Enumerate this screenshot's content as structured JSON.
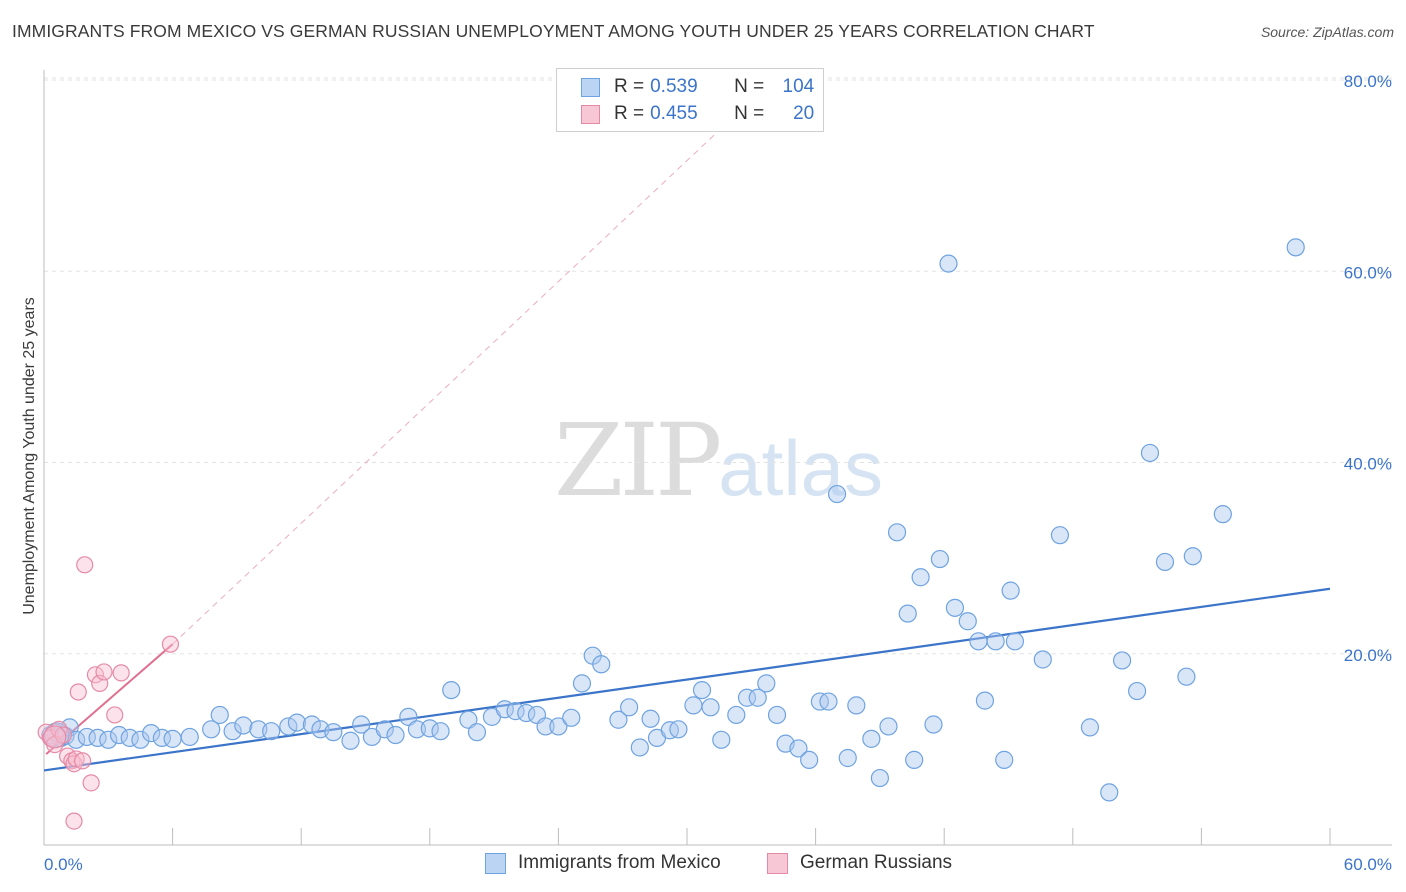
{
  "title": "IMMIGRANTS FROM MEXICO VS GERMAN RUSSIAN UNEMPLOYMENT AMONG YOUTH UNDER 25 YEARS CORRELATION CHART",
  "source": "Source: ZipAtlas.com",
  "watermark": {
    "part1": "ZIP",
    "part2": "atlas"
  },
  "legend": {
    "r_label": "R =",
    "n_label": "N =",
    "entries": [
      {
        "name": "Immigrants from Mexico",
        "r": "0.539",
        "n": "104",
        "color": "#6fa3e0",
        "fill": "#bcd4f4"
      },
      {
        "name": "German Russians",
        "r": "0.455",
        "n": "20",
        "color": "#e58aa6",
        "fill": "#f8c7d6"
      }
    ]
  },
  "chart_data": {
    "type": "scatter",
    "title": "IMMIGRANTS FROM MEXICO VS GERMAN RUSSIAN UNEMPLOYMENT AMONG YOUTH UNDER 25 YEARS CORRELATION CHART",
    "xlabel": "",
    "ylabel": "Unemployment Among Youth under 25 years",
    "xlim": [
      0,
      60
    ],
    "ylim": [
      0,
      80
    ],
    "x_tick_labels": [
      "0.0%",
      "60.0%"
    ],
    "y_ticks": [
      20,
      40,
      60,
      80
    ],
    "y_tick_labels": [
      "20.0%",
      "40.0%",
      "60.0%",
      "80.0%"
    ],
    "grid": true,
    "series": [
      {
        "name": "Immigrants from Mexico",
        "color": "#6fa3e0",
        "points": [
          [
            0.3,
            11.5
          ],
          [
            0.5,
            11.8
          ],
          [
            0.8,
            11.2
          ],
          [
            1.0,
            11.4
          ],
          [
            1.2,
            12.3
          ],
          [
            1.5,
            11.0
          ],
          [
            2.0,
            11.3
          ],
          [
            2.5,
            11.2
          ],
          [
            3.0,
            11.0
          ],
          [
            3.5,
            11.5
          ],
          [
            4.0,
            11.2
          ],
          [
            4.5,
            11.0
          ],
          [
            5.0,
            11.7
          ],
          [
            5.5,
            11.2
          ],
          [
            6.0,
            11.1
          ],
          [
            6.8,
            11.3
          ],
          [
            7.8,
            12.1
          ],
          [
            8.2,
            13.6
          ],
          [
            8.8,
            11.9
          ],
          [
            9.3,
            12.5
          ],
          [
            10.0,
            12.1
          ],
          [
            10.6,
            11.9
          ],
          [
            11.4,
            12.4
          ],
          [
            11.8,
            12.8
          ],
          [
            12.5,
            12.6
          ],
          [
            12.9,
            12.1
          ],
          [
            13.5,
            11.8
          ],
          [
            14.3,
            10.9
          ],
          [
            14.8,
            12.6
          ],
          [
            15.3,
            11.3
          ],
          [
            15.9,
            12.1
          ],
          [
            16.4,
            11.5
          ],
          [
            17.0,
            13.4
          ],
          [
            17.4,
            12.1
          ],
          [
            18.0,
            12.2
          ],
          [
            18.5,
            11.9
          ],
          [
            19.0,
            16.2
          ],
          [
            19.8,
            13.1
          ],
          [
            20.2,
            11.8
          ],
          [
            20.9,
            13.4
          ],
          [
            21.5,
            14.2
          ],
          [
            22.0,
            14.0
          ],
          [
            22.5,
            13.8
          ],
          [
            23.0,
            13.6
          ],
          [
            23.4,
            12.4
          ],
          [
            24.0,
            12.4
          ],
          [
            24.6,
            13.3
          ],
          [
            25.1,
            16.9
          ],
          [
            25.6,
            19.8
          ],
          [
            26.0,
            18.9
          ],
          [
            26.8,
            13.1
          ],
          [
            27.3,
            14.4
          ],
          [
            27.8,
            10.2
          ],
          [
            28.3,
            13.2
          ],
          [
            28.6,
            11.2
          ],
          [
            29.2,
            12.0
          ],
          [
            29.6,
            12.1
          ],
          [
            30.3,
            14.6
          ],
          [
            30.7,
            16.2
          ],
          [
            31.1,
            14.4
          ],
          [
            31.6,
            11.0
          ],
          [
            32.3,
            13.6
          ],
          [
            32.8,
            15.4
          ],
          [
            33.3,
            15.4
          ],
          [
            33.7,
            16.9
          ],
          [
            34.2,
            13.6
          ],
          [
            34.6,
            10.6
          ],
          [
            35.2,
            10.1
          ],
          [
            35.7,
            8.9
          ],
          [
            36.2,
            15.0
          ],
          [
            36.6,
            15.0
          ],
          [
            37.0,
            36.7
          ],
          [
            37.5,
            9.1
          ],
          [
            37.9,
            14.6
          ],
          [
            38.6,
            11.1
          ],
          [
            39.0,
            7.0
          ],
          [
            39.4,
            12.4
          ],
          [
            39.8,
            32.7
          ],
          [
            40.3,
            24.2
          ],
          [
            40.6,
            8.9
          ],
          [
            40.9,
            28.0
          ],
          [
            41.5,
            12.6
          ],
          [
            41.8,
            29.9
          ],
          [
            42.2,
            60.8
          ],
          [
            42.5,
            24.8
          ],
          [
            43.1,
            23.4
          ],
          [
            43.6,
            21.3
          ],
          [
            43.9,
            15.1
          ],
          [
            44.4,
            21.3
          ],
          [
            44.8,
            8.9
          ],
          [
            45.1,
            26.6
          ],
          [
            45.3,
            21.3
          ],
          [
            46.6,
            19.4
          ],
          [
            47.4,
            32.4
          ],
          [
            48.8,
            12.3
          ],
          [
            49.7,
            5.5
          ],
          [
            50.3,
            19.3
          ],
          [
            51.0,
            16.1
          ],
          [
            51.6,
            41.0
          ],
          [
            52.3,
            29.6
          ],
          [
            53.3,
            17.6
          ],
          [
            53.6,
            30.2
          ],
          [
            55.0,
            34.6
          ],
          [
            58.4,
            62.5
          ]
        ],
        "trend": {
          "x": [
            0,
            60
          ],
          "y": [
            7.8,
            26.8
          ]
        }
      },
      {
        "name": "German Russians",
        "color": "#e58aa6",
        "points": [
          [
            0.1,
            11.8
          ],
          [
            0.3,
            11.2
          ],
          [
            0.5,
            10.5
          ],
          [
            0.7,
            12.1
          ],
          [
            0.9,
            11.5
          ],
          [
            1.1,
            9.3
          ],
          [
            1.3,
            8.8
          ],
          [
            1.4,
            8.5
          ],
          [
            1.5,
            9.0
          ],
          [
            1.6,
            16.0
          ],
          [
            1.8,
            8.8
          ],
          [
            1.9,
            29.3
          ],
          [
            2.2,
            6.5
          ],
          [
            2.4,
            17.8
          ],
          [
            2.6,
            16.9
          ],
          [
            2.8,
            18.1
          ],
          [
            3.3,
            13.6
          ],
          [
            3.6,
            18.0
          ],
          [
            5.9,
            21.0
          ],
          [
            1.4,
            2.5
          ]
        ],
        "trend": {
          "x": [
            0.1,
            6.0
          ],
          "y": [
            9.5,
            21.0
          ]
        },
        "trend_extension": {
          "x": [
            6.0,
            34.0
          ],
          "y": [
            21.0,
            80.0
          ]
        }
      }
    ]
  }
}
